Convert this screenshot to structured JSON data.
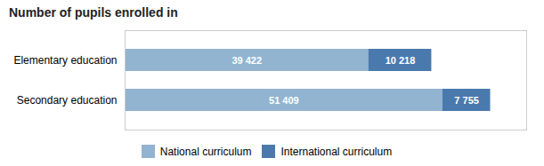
{
  "chart_data": {
    "type": "bar",
    "orientation": "horizontal",
    "stacked": true,
    "title": "Number of pupils enrolled in",
    "categories": [
      "Elementary education",
      "Secondary education"
    ],
    "series": [
      {
        "name": "National curriculum",
        "color": "#92b4d0",
        "values": [
          39422,
          51409
        ],
        "value_labels": [
          "39 422",
          "51 409"
        ]
      },
      {
        "name": "International curriculum",
        "color": "#4a7aad",
        "values": [
          10218,
          7755
        ],
        "value_labels": [
          "10 218",
          "7 755"
        ]
      }
    ],
    "xlim": [
      0,
      65000
    ],
    "data_labels": true,
    "tick_labels": "y",
    "grid": false,
    "legend": "bottom"
  }
}
